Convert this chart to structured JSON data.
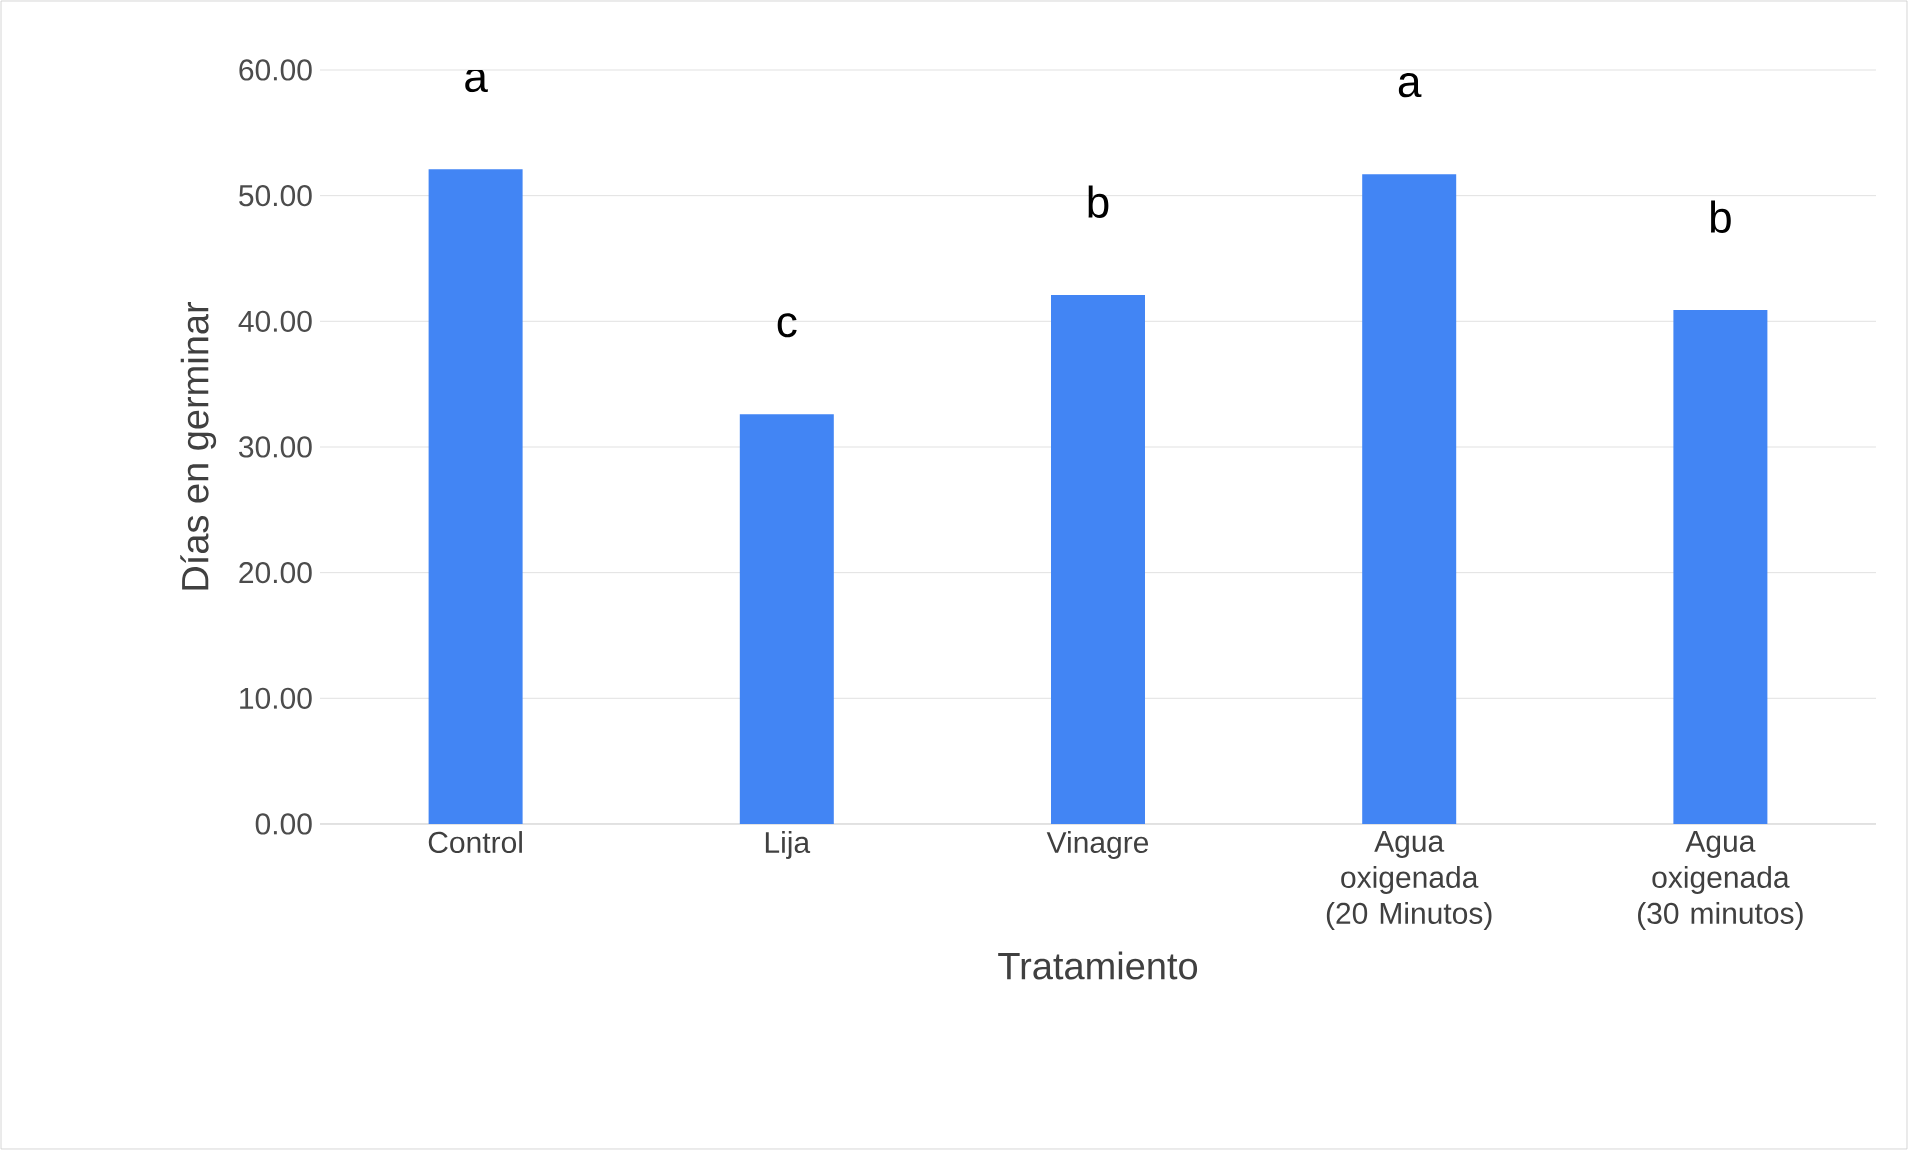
{
  "chart_data": {
    "type": "bar",
    "xlabel": "Tratamiento",
    "ylabel": "Días en germinar",
    "categories": [
      "Control",
      "Lija",
      "Vinagre",
      "Agua oxigenada (20 Minutos)",
      "Agua oxigenada (30 minutos)"
    ],
    "values": [
      52.1,
      32.6,
      42.1,
      51.7,
      40.9
    ],
    "color": "#4285f4",
    "ylim": [
      0,
      60
    ],
    "yticks": [
      {
        "value": 0,
        "label": "0.00"
      },
      {
        "value": 10,
        "label": "10.00"
      },
      {
        "value": 20,
        "label": "20.00"
      },
      {
        "value": 30,
        "label": "30.00"
      },
      {
        "value": 40,
        "label": "40.00"
      },
      {
        "value": 50,
        "label": "50.00"
      },
      {
        "value": 60,
        "label": "60.00"
      }
    ],
    "grid": "y",
    "annotations": [
      "a",
      "c",
      "b",
      "a",
      "b"
    ]
  }
}
